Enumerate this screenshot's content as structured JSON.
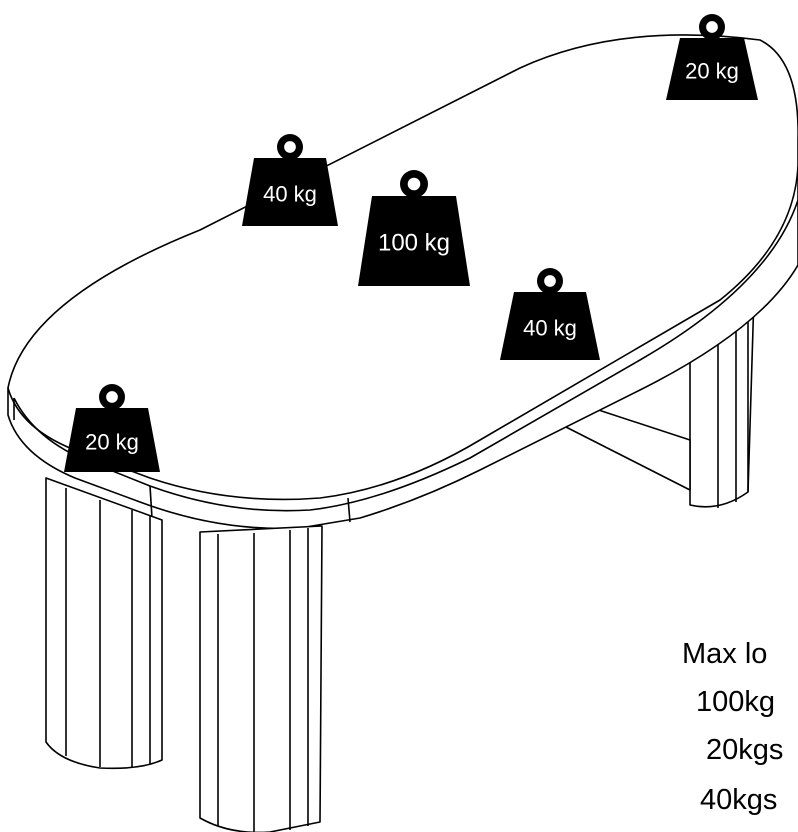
{
  "weights": [
    {
      "id": "w20-back",
      "label": "20 kg"
    },
    {
      "id": "w40-left",
      "label": "40 kg"
    },
    {
      "id": "w100-center",
      "label": "100 kg"
    },
    {
      "id": "w40-right",
      "label": "40 kg"
    },
    {
      "id": "w20-front",
      "label": "20 kg"
    }
  ],
  "legend": {
    "title": "Max lo",
    "line1": "100kg",
    "line2": "20kgs",
    "line3": "40kgs"
  },
  "colors": {
    "ink": "#000000",
    "paper": "#ffffff"
  }
}
